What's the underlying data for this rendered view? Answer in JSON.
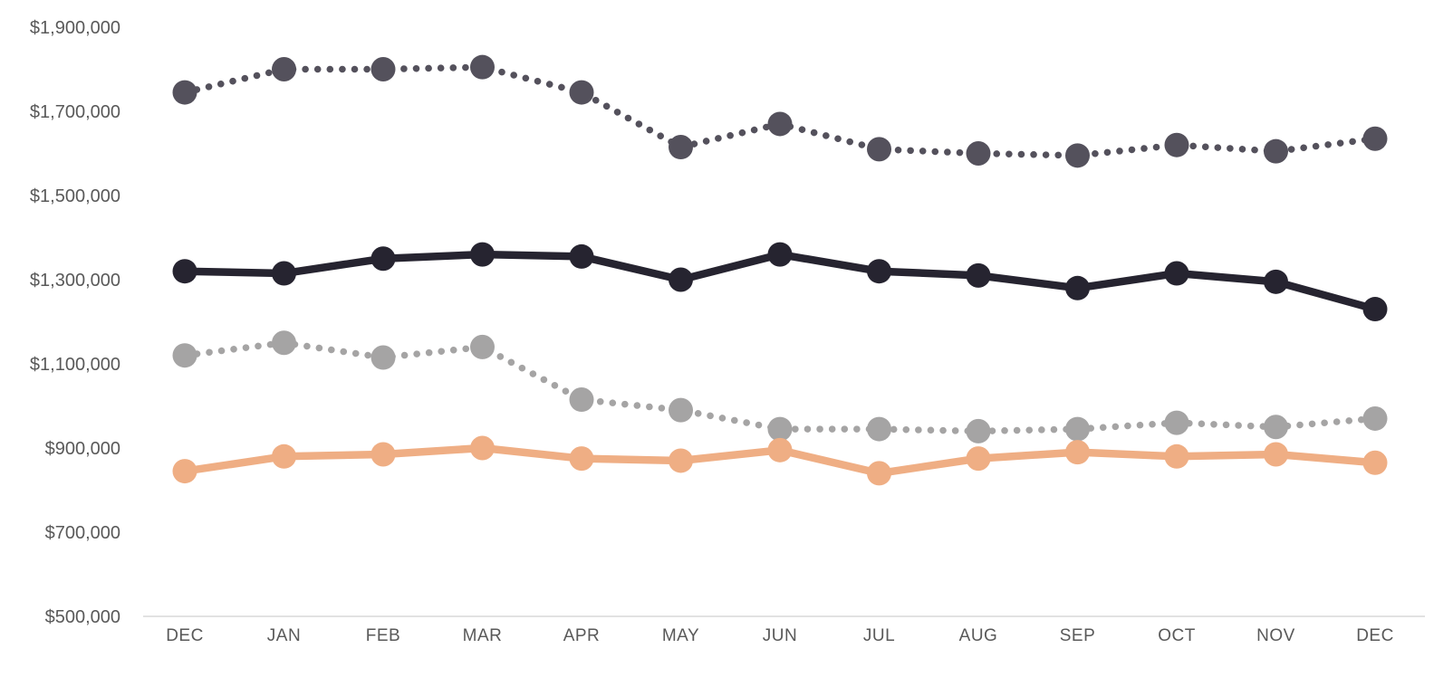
{
  "chart_data": {
    "type": "line",
    "title": "",
    "xlabel": "",
    "ylabel": "",
    "categories": [
      "DEC",
      "JAN",
      "FEB",
      "MAR",
      "APR",
      "MAY",
      "JUN",
      "JUL",
      "AUG",
      "SEP",
      "OCT",
      "NOV",
      "DEC"
    ],
    "series": [
      {
        "id": "dark-dotted-series",
        "style": "dotted",
        "color": "#54515C",
        "values": [
          1745000,
          1800000,
          1800000,
          1805000,
          1745000,
          1615000,
          1670000,
          1610000,
          1600000,
          1595000,
          1620000,
          1605000,
          1635000
        ]
      },
      {
        "id": "black-solid-series",
        "style": "solid",
        "color": "#262430",
        "values": [
          1320000,
          1315000,
          1350000,
          1360000,
          1355000,
          1300000,
          1360000,
          1320000,
          1310000,
          1280000,
          1315000,
          1295000,
          1230000
        ]
      },
      {
        "id": "gray-dotted-series",
        "style": "dotted",
        "color": "#A5A4A4",
        "values": [
          1120000,
          1150000,
          1115000,
          1140000,
          1015000,
          990000,
          945000,
          945000,
          940000,
          945000,
          960000,
          950000,
          970000
        ]
      },
      {
        "id": "peach-solid-series",
        "style": "solid",
        "color": "#EFAE84",
        "values": [
          845000,
          880000,
          885000,
          900000,
          875000,
          870000,
          895000,
          840000,
          875000,
          890000,
          880000,
          885000,
          865000
        ]
      }
    ],
    "y_tick_labels": [
      "$1,900,000",
      "$1,700,000",
      "$1,500,000",
      "$1,300,000",
      "$1,100,000",
      "$900,000",
      "$700,000",
      "$500,000"
    ],
    "ylim": [
      500000,
      1900000
    ],
    "ytick_step": 200000,
    "grid": false,
    "legend": "none",
    "axis_line_color": "#D9D9D9",
    "tick_label_color": "#595959",
    "background_color": "#FFFFFF"
  }
}
